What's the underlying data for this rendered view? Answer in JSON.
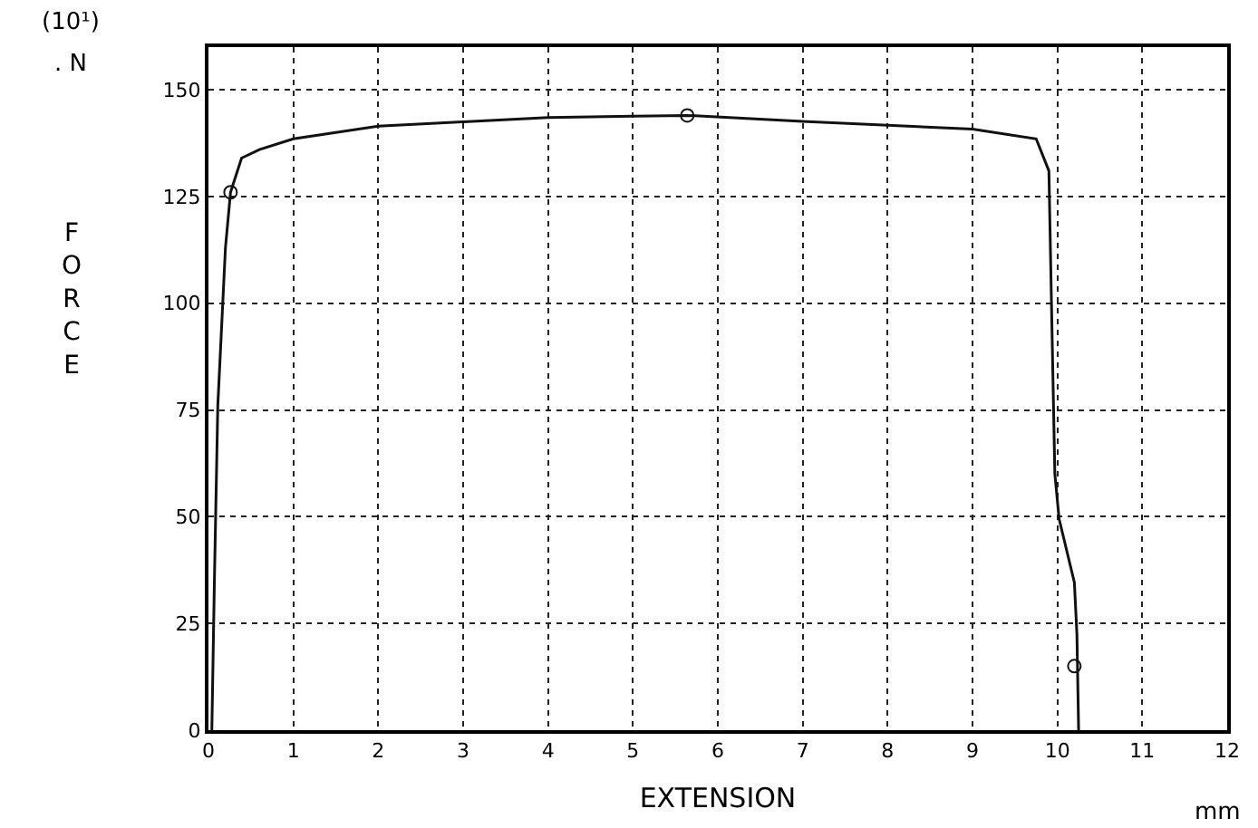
{
  "chart_data": {
    "type": "line",
    "xlabel": "EXTENSION",
    "ylabel": "FORCE",
    "annotations": [
      "(10¹)",
      ". N",
      "mm"
    ],
    "xlim": [
      0,
      12
    ],
    "xticks": [
      0,
      1,
      2,
      3,
      4,
      5,
      6,
      7,
      8,
      9,
      10,
      11,
      12
    ],
    "ylim": [
      0,
      160
    ],
    "yticks": [
      0,
      25,
      50,
      75,
      100,
      125,
      150
    ],
    "grid": true,
    "series": [
      {
        "color": "#111111",
        "marker": "none",
        "line_style": "solid",
        "x": [
          0.04,
          0.07,
          0.11,
          0.2,
          0.26,
          0.39,
          0.6,
          1,
          2,
          3,
          4,
          5,
          5.64,
          7,
          9,
          9.75,
          9.9,
          9.93,
          9.97,
          10.02,
          10.2,
          10.23,
          10.25
        ],
        "values": [
          0,
          35,
          76,
          113,
          126,
          134,
          136,
          138.5,
          141.5,
          142.5,
          143.5,
          143.8,
          144,
          142.6,
          140.8,
          138.5,
          131,
          100,
          60,
          49.5,
          34.6,
          22.4,
          0
        ]
      },
      {
        "type": "scatter",
        "color": "#111111",
        "marker": "circle",
        "x": [
          0.26,
          5.64,
          10.2
        ],
        "values": [
          126,
          144,
          15
        ]
      }
    ]
  }
}
